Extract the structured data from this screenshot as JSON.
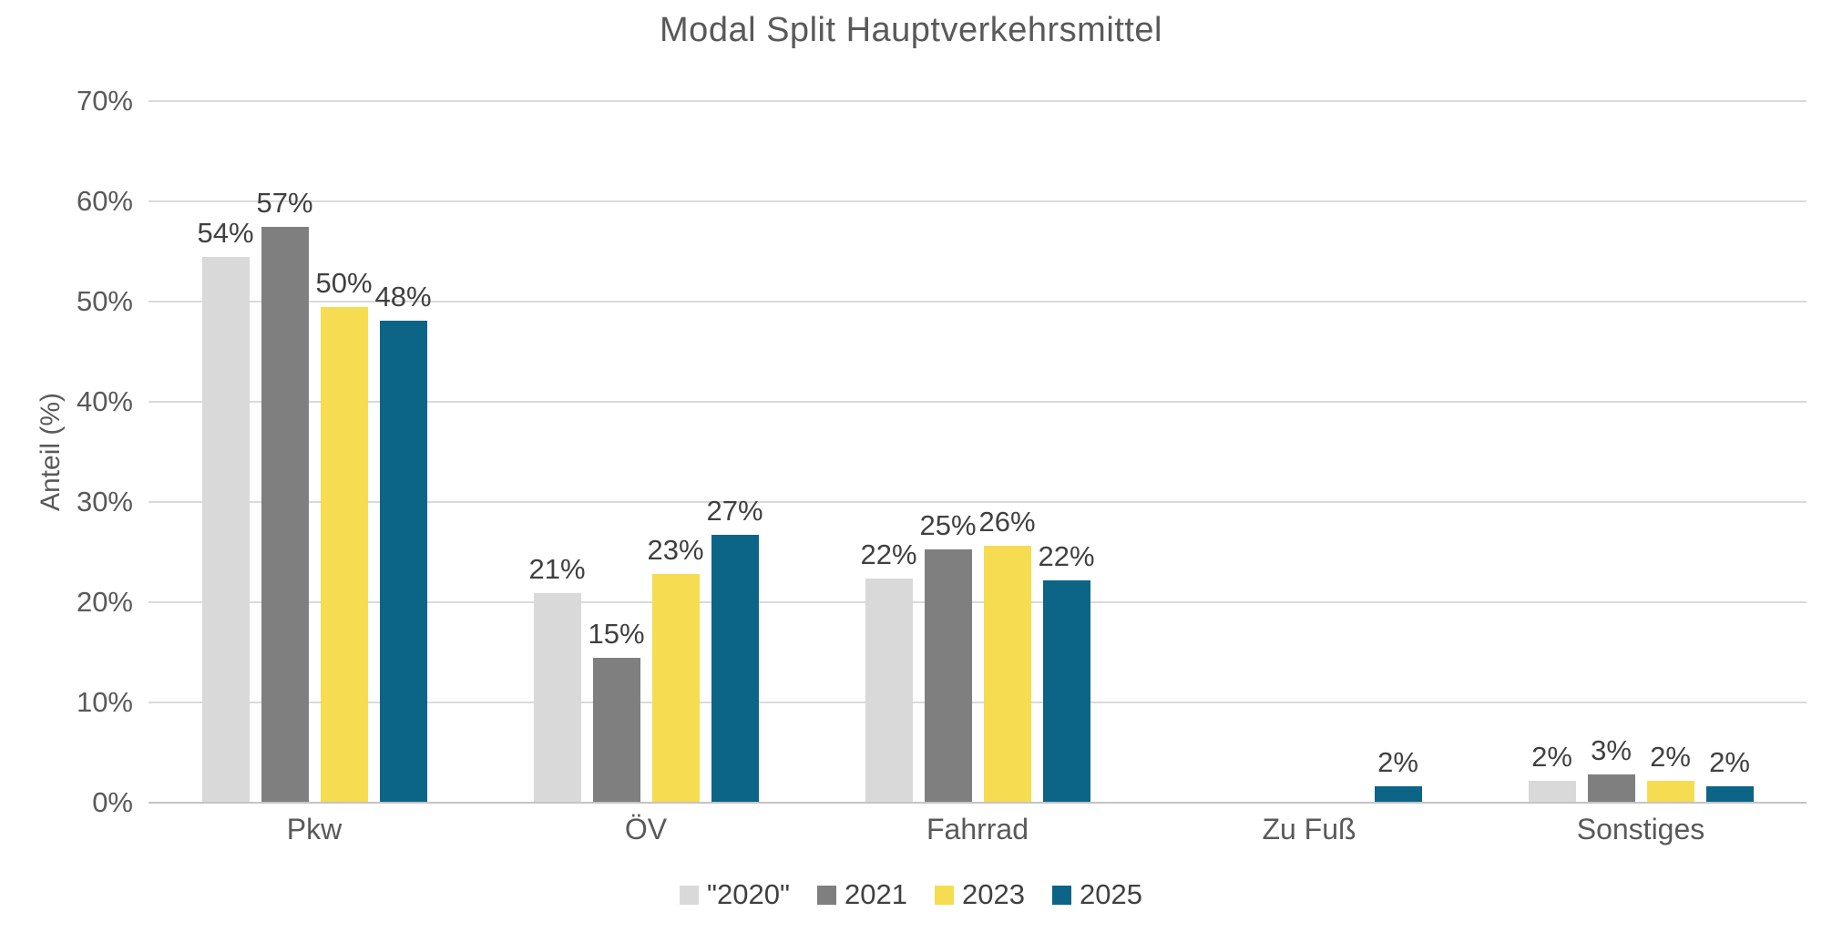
{
  "chart_data": {
    "type": "bar",
    "title": "Modal Split Hauptverkehrsmittel",
    "xlabel": "",
    "ylabel": "Anteil (%)",
    "ylim": [
      0,
      70
    ],
    "y_ticks": [
      "0%",
      "10%",
      "20%",
      "30%",
      "40%",
      "50%",
      "60%",
      "70%"
    ],
    "grid": true,
    "legend_position": "bottom",
    "categories": [
      "Pkw",
      "ÖV",
      "Fahrrad",
      "Zu Fuß",
      "Sonstiges"
    ],
    "series": [
      {
        "name": "\"2020\"",
        "color": "#d9d9d9",
        "values": [
          54,
          21,
          22,
          null,
          2
        ],
        "labels": [
          "54%",
          "21%",
          "22%",
          null,
          "2%"
        ],
        "display_heights": [
          54.5,
          20.9,
          22.4,
          null,
          2.2
        ]
      },
      {
        "name": "2021",
        "color": "#7f7f7f",
        "values": [
          57,
          15,
          25,
          null,
          3
        ],
        "labels": [
          "57%",
          "15%",
          "25%",
          null,
          "3%"
        ],
        "display_heights": [
          57.5,
          14.5,
          25.3,
          null,
          2.8
        ]
      },
      {
        "name": "2023",
        "color": "#f6dc50",
        "values": [
          50,
          23,
          26,
          null,
          2
        ],
        "labels": [
          "50%",
          "23%",
          "26%",
          null,
          "2%"
        ],
        "display_heights": [
          49.5,
          22.8,
          25.6,
          null,
          2.2
        ]
      },
      {
        "name": "2025",
        "color": "#0c6486",
        "values": [
          48,
          27,
          22,
          2,
          2
        ],
        "labels": [
          "48%",
          "27%",
          "22%",
          "2%",
          "2%"
        ],
        "display_heights": [
          48.1,
          26.7,
          22.2,
          1.6,
          1.6
        ]
      }
    ]
  },
  "colors": {
    "background": "#ffffff",
    "title_text": "#595959",
    "axis_text": "#595959",
    "data_label_text": "#404040",
    "legend_text": "#404040",
    "gridline": "#dadada",
    "axis_line": "#c4c4c4"
  }
}
